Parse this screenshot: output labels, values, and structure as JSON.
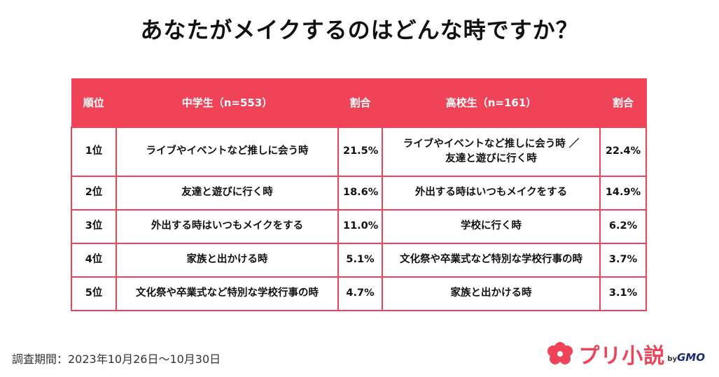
{
  "title": "あなたがメイクするのはどんな時ですか？",
  "table": {
    "headers": {
      "rank": "順位",
      "middle_school": "中学生（n=553）",
      "middle_pct": "割合",
      "high_school": "高校生（n=161）",
      "high_pct": "割合"
    },
    "rows": [
      {
        "rank": "1位",
        "middle": "ライブやイベントなど推しに会う時",
        "middle_pct": "21.5%",
        "high_line1": "ライブやイベントなど推しに会う時 ／",
        "high_line2": "友達と遊びに行く時",
        "high_pct": "22.4%"
      },
      {
        "rank": "2位",
        "middle": "友達と遊びに行く時",
        "middle_pct": "18.6%",
        "high_line1": "外出する時はいつもメイクをする",
        "high_pct": "14.9%"
      },
      {
        "rank": "3位",
        "middle": "外出する時はいつもメイクをする",
        "middle_pct": "11.0%",
        "high_line1": "学校に行く時",
        "high_pct": "6.2%"
      },
      {
        "rank": "4位",
        "middle": "家族と出かける時",
        "middle_pct": "5.1%",
        "high_line1": "文化祭や卒業式など特別な学校行事の時",
        "high_pct": "3.7%"
      },
      {
        "rank": "5位",
        "middle": "文化祭や卒業式など特別な学校行事の時",
        "middle_pct": "4.7%",
        "high_line1": "家族と出かける時",
        "high_pct": "3.1%"
      }
    ]
  },
  "footer": {
    "survey_period": "調査期間：2023年10月26日〜10月30日",
    "brand_name": "プリ小説",
    "brand_by": "by",
    "brand_company": "GMO"
  },
  "colors": {
    "accent": "#f04358",
    "gmo": "#1a2a7a"
  }
}
